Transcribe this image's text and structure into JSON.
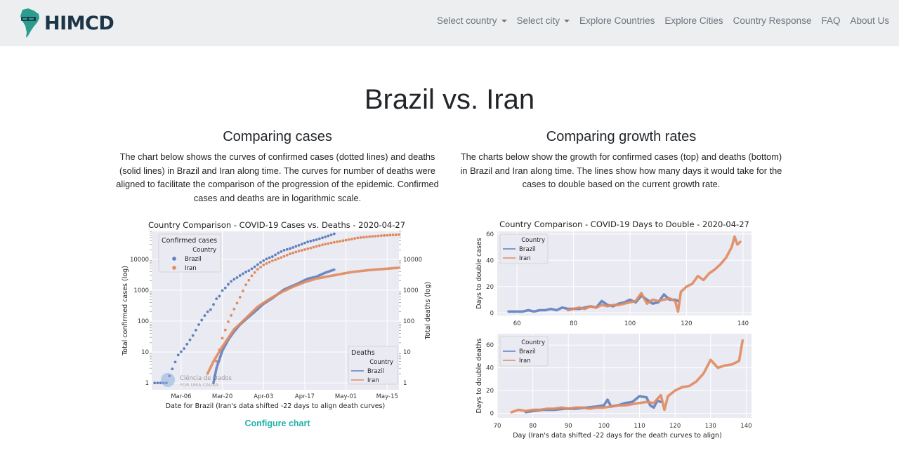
{
  "nav": {
    "brand": "HIMCD",
    "items": [
      {
        "label": "Select country",
        "dropdown": true
      },
      {
        "label": "Select city",
        "dropdown": true
      },
      {
        "label": "Explore Countries",
        "dropdown": false
      },
      {
        "label": "Explore Cities",
        "dropdown": false
      },
      {
        "label": "Country Response",
        "dropdown": false
      },
      {
        "label": "FAQ",
        "dropdown": false
      },
      {
        "label": "About Us",
        "dropdown": false
      }
    ]
  },
  "page": {
    "title": "Brazil vs. Iran",
    "left_title": "Comparing cases",
    "left_desc": "The chart below shows the curves of confirmed cases (dotted lines) and deaths (solid lines) in Brazil and Iran along time. The curves for number of deaths were aligned to facilitate the comparison of the progression of the epidemic. Confirmed cases and deaths are in logarithmic scale.",
    "right_title": "Comparing growth rates",
    "right_desc": "The charts below show the growth for confirmed cases (top) and deaths (bottom) in Brazil and Iran along time. The lines show how many days it would take for the cases to double based on the current growth rate.",
    "configure_link": "Configure chart",
    "watermark_line1": "Ciência de Dados",
    "watermark_line2": "POR UMA CAUSA"
  },
  "colors": {
    "brazil": "#5f7fbf",
    "iran": "#e08a5e",
    "plot_bg": "#eaeaf2",
    "brand": "#1c3547",
    "link": "#20b2aa"
  },
  "chart_data": [
    {
      "type": "line",
      "title": "Country Comparison - COVID-19 Cases vs. Deaths - 2020-04-27",
      "xlabel": "Date for Brazil (Iran's data shifted -22 days to align death curves)",
      "ylabel_left": "Total confirmed cases (log)",
      "ylabel_right": "Total deaths (log)",
      "yscale": "log",
      "xlim": [
        "2020-02-25",
        "2020-05-19"
      ],
      "ylim": [
        0.6,
        80000
      ],
      "xticks": [
        "Mar-06",
        "Mar-20",
        "Apr-03",
        "Apr-17",
        "May-01",
        "May-15"
      ],
      "xtick_dates": [
        "2020-03-06",
        "2020-03-20",
        "2020-04-03",
        "2020-04-17",
        "2020-05-01",
        "2020-05-15"
      ],
      "yticks": [
        1,
        10,
        100,
        1000,
        10000
      ],
      "ytick_labels": [
        "1",
        "10",
        "100",
        "1000",
        "10000"
      ],
      "legend_cases_title": "Confirmed cases",
      "legend_deaths_title": "Deaths",
      "legend_subtitle": "Country",
      "legend_cases_position": "upper left",
      "legend_deaths_position": "lower right",
      "grid": true,
      "series": [
        {
          "name": "Brazil",
          "kind": "confirmed",
          "style": "dots",
          "x": [
            "2020-02-26",
            "2020-03-01",
            "2020-03-05",
            "2020-03-07",
            "2020-03-10",
            "2020-03-12",
            "2020-03-14",
            "2020-03-15",
            "2020-03-16",
            "2020-03-17",
            "2020-03-18",
            "2020-03-19",
            "2020-03-20",
            "2020-03-21",
            "2020-03-22",
            "2020-03-23",
            "2020-03-24",
            "2020-03-25",
            "2020-03-26",
            "2020-03-27",
            "2020-03-28",
            "2020-03-29",
            "2020-03-31",
            "2020-04-02",
            "2020-04-04",
            "2020-04-06",
            "2020-04-08",
            "2020-04-10",
            "2020-04-12",
            "2020-04-15",
            "2020-04-18",
            "2020-04-21",
            "2020-04-24",
            "2020-04-27"
          ],
          "y": [
            1,
            1,
            8,
            13,
            34,
            77,
            151,
            200,
            234,
            346,
            529,
            640,
            970,
            1178,
            1546,
            1924,
            2247,
            2554,
            2985,
            3417,
            3904,
            4256,
            5717,
            7910,
            10278,
            12161,
            15927,
            19638,
            22169,
            28320,
            36599,
            43079,
            52995,
            66501
          ]
        },
        {
          "name": "Iran",
          "kind": "confirmed",
          "style": "dots",
          "x": [
            "2020-03-18",
            "2020-03-20",
            "2020-03-22",
            "2020-03-24",
            "2020-03-26",
            "2020-03-28",
            "2020-03-30",
            "2020-04-01",
            "2020-04-03",
            "2020-04-06",
            "2020-04-09",
            "2020-04-12",
            "2020-04-15",
            "2020-04-19",
            "2020-04-23",
            "2020-04-27",
            "2020-05-01",
            "2020-05-05",
            "2020-05-09",
            "2020-05-13",
            "2020-05-17",
            "2020-05-19"
          ],
          "y": [
            5,
            28,
            95,
            245,
            593,
            1501,
            2922,
            4747,
            6566,
            9000,
            11364,
            14991,
            18407,
            23049,
            29406,
            35408,
            41495,
            49000,
            54000,
            58000,
            61000,
            62000
          ]
        },
        {
          "name": "Brazil",
          "kind": "deaths",
          "style": "line",
          "x": [
            "2020-03-17",
            "2020-03-18",
            "2020-03-20",
            "2020-03-22",
            "2020-03-24",
            "2020-03-26",
            "2020-03-28",
            "2020-03-31",
            "2020-04-03",
            "2020-04-06",
            "2020-04-10",
            "2020-04-14",
            "2020-04-18",
            "2020-04-21",
            "2020-04-24",
            "2020-04-27"
          ],
          "y": [
            1,
            3,
            11,
            25,
            46,
            77,
            114,
            201,
            359,
            553,
            1056,
            1532,
            2347,
            2741,
            3670,
            4603
          ]
        },
        {
          "name": "Iran",
          "kind": "deaths",
          "style": "line",
          "x": [
            "2020-03-15",
            "2020-03-17",
            "2020-03-20",
            "2020-03-24",
            "2020-03-28",
            "2020-04-01",
            "2020-04-05",
            "2020-04-09",
            "2020-04-13",
            "2020-04-17",
            "2020-04-21",
            "2020-04-27",
            "2020-05-03",
            "2020-05-09",
            "2020-05-15",
            "2020-05-19"
          ],
          "y": [
            2,
            5,
            15,
            54,
            124,
            291,
            514,
            853,
            1284,
            1812,
            2378,
            3036,
            3872,
            4474,
            4958,
            5297
          ]
        }
      ]
    },
    {
      "type": "line",
      "title": "Country Comparison - COVID-19 Days to Double - 2020-04-27",
      "xlabel": "",
      "ylabel": "Days to double cases",
      "xlim": [
        53,
        143
      ],
      "ylim": [
        -2,
        62
      ],
      "xticks": [
        60,
        80,
        100,
        120,
        140
      ],
      "yticks": [
        0,
        20,
        40,
        60
      ],
      "legend_title": "Country",
      "legend_position": "upper left",
      "grid": true,
      "series": [
        {
          "name": "Brazil",
          "x": [
            57,
            60,
            62,
            64,
            66,
            68,
            70,
            72,
            74,
            76,
            78,
            80,
            82,
            84,
            86,
            88,
            90,
            92,
            94,
            96,
            98,
            100,
            102,
            104,
            106,
            108,
            110,
            112,
            114,
            116,
            117
          ],
          "y": [
            1,
            1,
            1,
            2,
            1,
            2,
            2,
            3,
            2,
            4,
            3,
            3,
            3,
            4,
            5,
            4,
            9,
            6,
            5,
            7,
            8,
            10,
            8,
            13,
            10,
            7,
            8,
            14,
            10,
            10,
            9
          ]
        },
        {
          "name": "Iran",
          "x": [
            78,
            80,
            82,
            84,
            86,
            88,
            90,
            92,
            94,
            96,
            98,
            100,
            102,
            104,
            106,
            108,
            110,
            112,
            114,
            116,
            117,
            118,
            120,
            122,
            124,
            126,
            128,
            130,
            132,
            134,
            136,
            137,
            138,
            139
          ],
          "y": [
            2,
            3,
            4,
            3,
            5,
            4,
            6,
            5,
            6,
            6,
            7,
            8,
            9,
            15,
            7,
            10,
            9,
            10,
            11,
            9,
            1,
            16,
            20,
            22,
            28,
            25,
            30,
            33,
            37,
            42,
            50,
            58,
            52,
            54
          ]
        }
      ]
    },
    {
      "type": "line",
      "title": "",
      "xlabel": "Day (Iran's data shifted -22 days for the death curves to align)",
      "ylabel": "Days to double deaths",
      "xlim": [
        70,
        141.5
      ],
      "ylim": [
        -4,
        70
      ],
      "xticks": [
        70,
        80,
        90,
        100,
        110,
        120,
        130,
        140
      ],
      "yticks": [
        0,
        20,
        40,
        60
      ],
      "legend_title": "Country",
      "legend_position": "upper left",
      "grid": true,
      "series": [
        {
          "name": "Brazil",
          "x": [
            78,
            80,
            83,
            86,
            89,
            92,
            95,
            98,
            100,
            101,
            102,
            104,
            106,
            108,
            110,
            112,
            113,
            114,
            115,
            116
          ],
          "y": [
            1,
            2,
            3,
            3,
            4,
            4,
            5,
            6,
            7,
            12,
            6,
            7,
            9,
            10,
            15,
            14,
            7,
            5,
            11,
            10
          ]
        },
        {
          "name": "Iran",
          "x": [
            74,
            76,
            78,
            80,
            82,
            84,
            86,
            88,
            90,
            92,
            94,
            96,
            98,
            100,
            102,
            104,
            106,
            108,
            110,
            112,
            114,
            116,
            117,
            118,
            120,
            122,
            124,
            126,
            128,
            130,
            132,
            134,
            136,
            138,
            139
          ],
          "y": [
            1,
            3,
            2,
            3,
            3,
            4,
            4,
            5,
            4,
            5,
            5,
            4,
            5,
            5,
            6,
            7,
            7,
            8,
            9,
            10,
            9,
            16,
            3,
            15,
            20,
            23,
            24,
            28,
            35,
            47,
            40,
            42,
            43,
            46,
            64
          ]
        }
      ]
    }
  ]
}
